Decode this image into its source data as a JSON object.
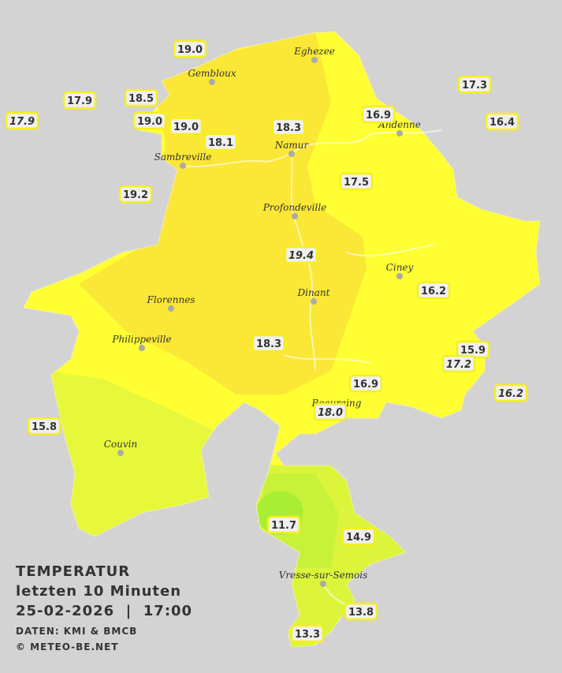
{
  "towns": [
    "Eghezee",
    "Gembloux",
    "Andenne",
    "Namur",
    "Sambreville",
    "Profondeville",
    "Ciney",
    "Dinant",
    "Florennes",
    "Philippeville",
    "Beauraing",
    "Couvin",
    "Vresse-sur-Semois"
  ],
  "stations": [
    {
      "label": "19.0",
      "italic": false
    },
    {
      "label": "17.9",
      "italic": false
    },
    {
      "label": "17.9",
      "italic": true
    },
    {
      "label": "18.5",
      "italic": false
    },
    {
      "label": "19.0",
      "italic": false
    },
    {
      "label": "19.0",
      "italic": false
    },
    {
      "label": "18.1",
      "italic": false
    },
    {
      "label": "18.3",
      "italic": false
    },
    {
      "label": "16.9",
      "italic": false
    },
    {
      "label": "17.3",
      "italic": false
    },
    {
      "label": "16.4",
      "italic": false
    },
    {
      "label": "17.5",
      "italic": false
    },
    {
      "label": "19.2",
      "italic": false
    },
    {
      "label": "19.4",
      "italic": true
    },
    {
      "label": "16.2",
      "italic": false
    },
    {
      "label": "18.3",
      "italic": false
    },
    {
      "label": "15.9",
      "italic": false
    },
    {
      "label": "17.2",
      "italic": true
    },
    {
      "label": "16.9",
      "italic": false
    },
    {
      "label": "16.2",
      "italic": true
    },
    {
      "label": "18.0",
      "italic": true
    },
    {
      "label": "15.8",
      "italic": false
    },
    {
      "label": "11.7",
      "italic": false
    },
    {
      "label": "14.9",
      "italic": false
    },
    {
      "label": "13.8",
      "italic": false
    },
    {
      "label": "13.3",
      "italic": false
    }
  ],
  "legend": {
    "title": "TEMPERATUR",
    "period": "letzten 10 Minuten",
    "datetime": "25-02-2026  |  17:00",
    "source": "DATEN: KMI & BMCB",
    "copyright": "© METEO-BE.NET"
  }
}
